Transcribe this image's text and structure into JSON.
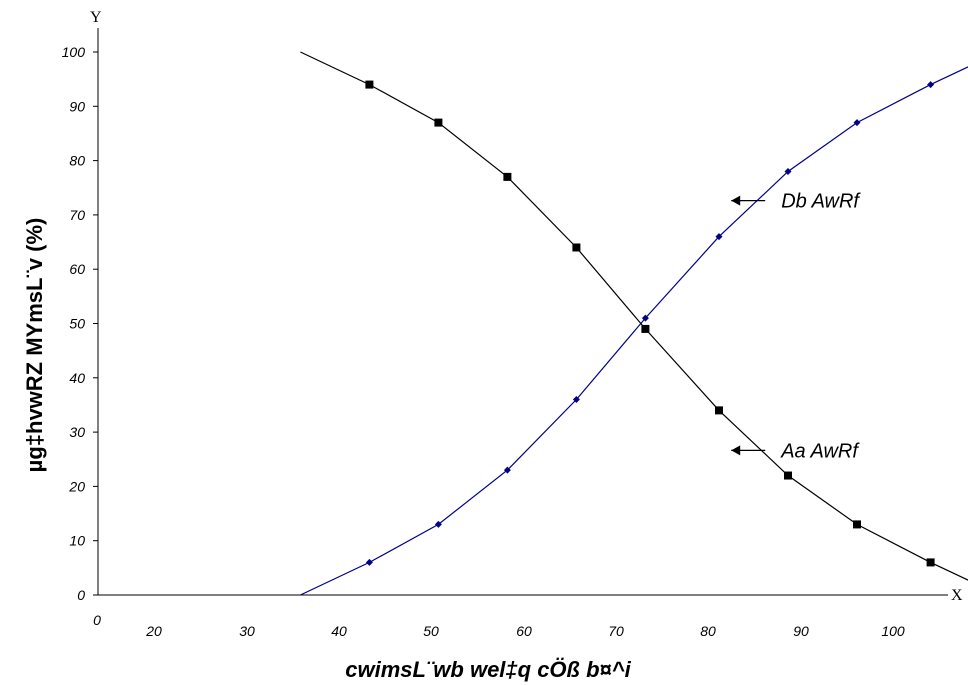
{
  "chart_data": {
    "type": "line",
    "title": "",
    "xlabel": "cwimsL¨wb wel‡q cÖß b¤^i",
    "ylabel": "µg‡hvwRZ MYmsL¨v (%)",
    "x_axis_letter": "X",
    "y_axis_letter": "Y",
    "xlim": [
      0,
      100
    ],
    "ylim": [
      0,
      100
    ],
    "x_ticks": [
      "0",
      "20",
      "30",
      "40",
      "50",
      "60",
      "70",
      "80",
      "90",
      "100"
    ],
    "y_ticks": [
      "0",
      "10",
      "20",
      "30",
      "40",
      "50",
      "60",
      "70",
      "80",
      "90",
      "100"
    ],
    "grid": false,
    "series": [
      {
        "name": "Db AwRf",
        "color": "#00008b",
        "marker": "diamond",
        "line_points": [
          [
            22,
            0
          ],
          [
            29.5,
            6
          ],
          [
            37,
            13
          ],
          [
            44.5,
            23
          ],
          [
            52,
            36
          ],
          [
            59.5,
            51
          ],
          [
            67.5,
            66
          ],
          [
            75,
            78
          ],
          [
            82.5,
            87
          ],
          [
            90.5,
            94
          ],
          [
            98,
            100
          ]
        ],
        "marked_points": [
          [
            29.5,
            6
          ],
          [
            37,
            13
          ],
          [
            44.5,
            23
          ],
          [
            52,
            36
          ],
          [
            59.5,
            51
          ],
          [
            67.5,
            66
          ],
          [
            75,
            78
          ],
          [
            82.5,
            87
          ],
          [
            90.5,
            94
          ]
        ]
      },
      {
        "name": "Aa AwRf",
        "color": "#000000",
        "marker": "square",
        "line_points": [
          [
            22,
            100
          ],
          [
            29.5,
            94
          ],
          [
            37,
            87
          ],
          [
            44.5,
            77
          ],
          [
            52,
            64
          ],
          [
            59.5,
            49
          ],
          [
            67.5,
            34
          ],
          [
            75,
            22
          ],
          [
            82.5,
            13
          ],
          [
            90.5,
            6
          ],
          [
            98,
            0
          ]
        ],
        "marked_points": [
          [
            29.5,
            94
          ],
          [
            37,
            87
          ],
          [
            44.5,
            77
          ],
          [
            52,
            64
          ],
          [
            59.5,
            49
          ],
          [
            67.5,
            34
          ],
          [
            75,
            22
          ],
          [
            82.5,
            13
          ],
          [
            90.5,
            6
          ]
        ]
      }
    ],
    "annotations": [
      {
        "text": "Db AwRf",
        "series": "Db AwRf",
        "arrow_to": [
          76,
          73
        ]
      },
      {
        "text": "Aa AwRf",
        "series": "Aa AwRf",
        "arrow_to": [
          76,
          27
        ]
      }
    ]
  }
}
